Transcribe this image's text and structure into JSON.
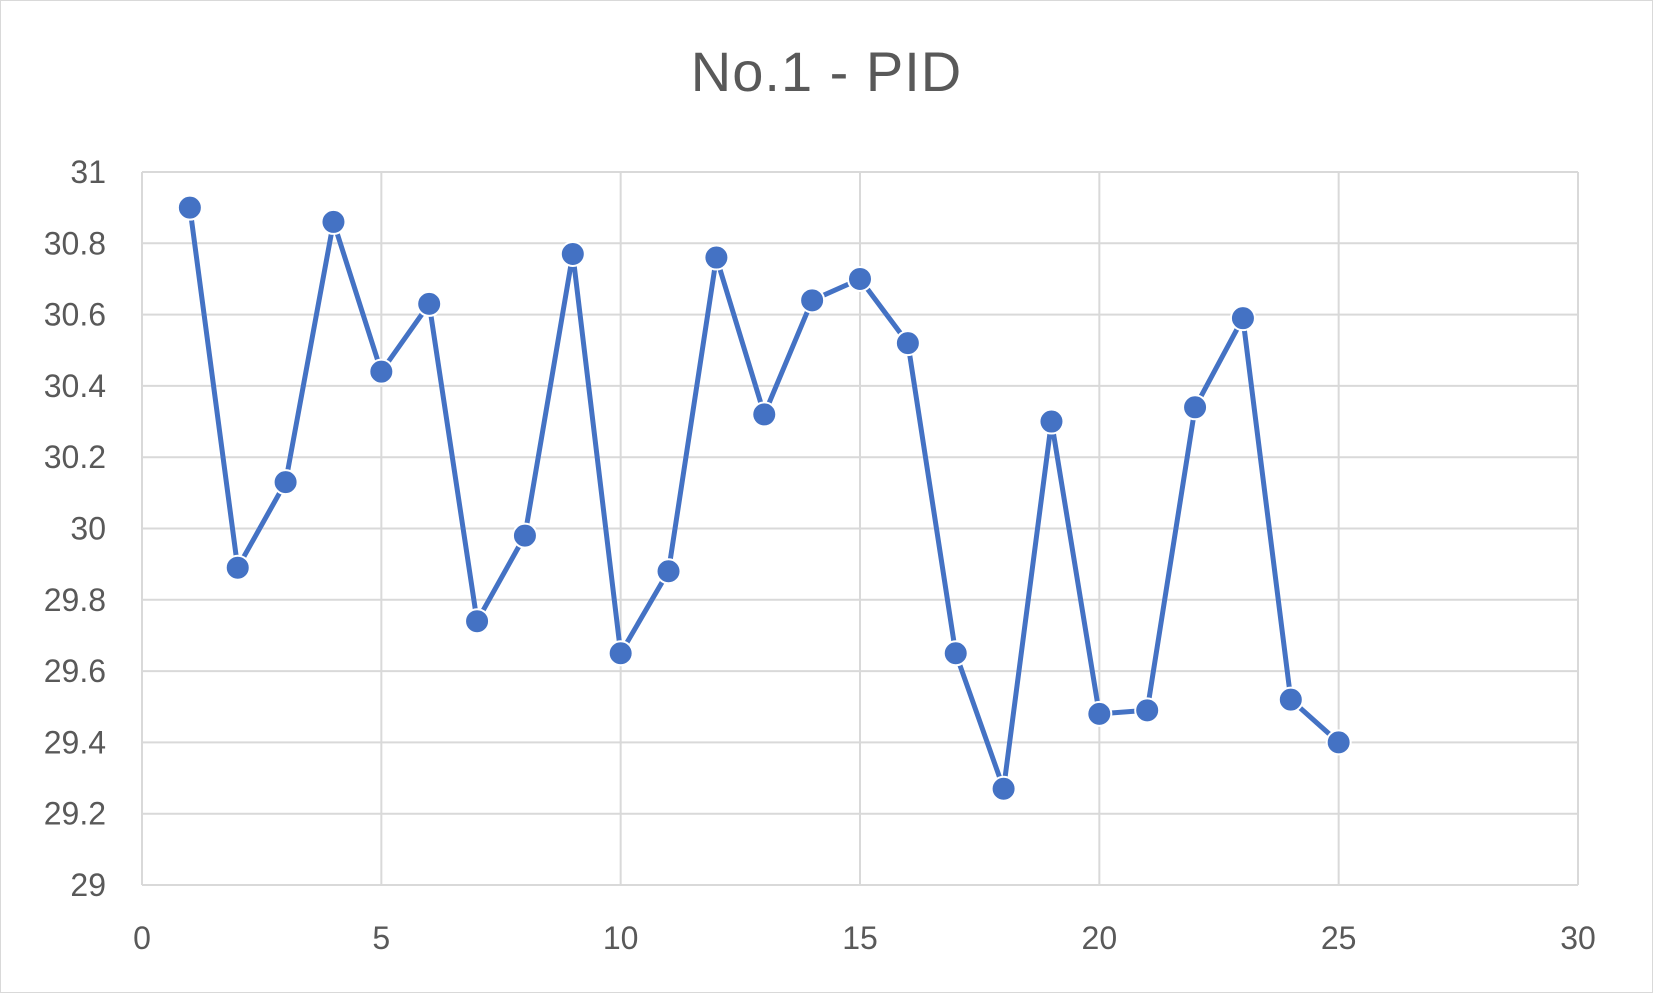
{
  "chart_data": {
    "type": "scatter",
    "title": "No.1 - PID",
    "xlabel": "",
    "ylabel": "",
    "xlim": [
      0,
      30
    ],
    "ylim": [
      29,
      31
    ],
    "x_ticks": [
      0,
      5,
      10,
      15,
      20,
      25,
      30
    ],
    "y_ticks": [
      29,
      29.2,
      29.4,
      29.6,
      29.8,
      30,
      30.2,
      30.4,
      30.6,
      30.8,
      31
    ],
    "x_tick_labels": [
      "0",
      "5",
      "10",
      "15",
      "20",
      "25",
      "30"
    ],
    "y_tick_labels": [
      "29",
      "29.2",
      "29.4",
      "29.6",
      "29.8",
      "30",
      "30.2",
      "30.4",
      "30.6",
      "30.8",
      "31"
    ],
    "grid": true,
    "legend": "none",
    "markers": true,
    "lines": true,
    "series": [
      {
        "color": "#4472c4",
        "x": [
          1,
          2,
          3,
          4,
          5,
          6,
          7,
          8,
          9,
          10,
          11,
          12,
          13,
          14,
          15,
          16,
          17,
          18,
          19,
          20,
          21,
          22,
          23,
          24,
          25
        ],
        "y": [
          30.9,
          29.89,
          30.13,
          30.86,
          30.44,
          30.63,
          29.74,
          29.98,
          30.77,
          29.65,
          29.88,
          30.76,
          30.32,
          30.64,
          30.7,
          30.52,
          29.65,
          29.27,
          30.3,
          29.48,
          29.49,
          30.34,
          30.59,
          29.52,
          29.4
        ]
      }
    ]
  }
}
